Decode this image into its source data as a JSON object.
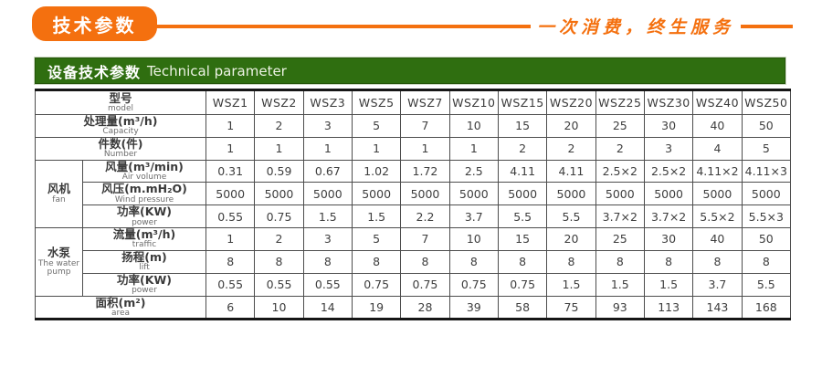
{
  "header": {
    "badge_label": "技术参数",
    "slogan": "一次消费，终生服务"
  },
  "section": {
    "title_zh": "设备技术参数",
    "title_en": "Technical parameter"
  },
  "colors": {
    "accent_orange": "#f4700f",
    "header_green": "#2f6e10",
    "table_border": "#4d4d4d",
    "text": "#3e3e3e"
  },
  "table": {
    "corner": {
      "zh": "型号",
      "en": "model"
    },
    "models": [
      "WSZ1",
      "WSZ2",
      "WSZ3",
      "WSZ5",
      "WSZ7",
      "WSZ10",
      "WSZ15",
      "WSZ20",
      "WSZ25",
      "WSZ30",
      "WSZ40",
      "WSZ50"
    ],
    "rows": [
      {
        "label_zh": "处理量(m³/h)",
        "label_en": "Capacity",
        "span_label": true,
        "values": [
          "1",
          "2",
          "3",
          "5",
          "7",
          "10",
          "15",
          "20",
          "25",
          "30",
          "40",
          "50"
        ]
      },
      {
        "label_zh": "件数(件)",
        "label_en": "Number",
        "span_label": true,
        "values": [
          "1",
          "1",
          "1",
          "1",
          "1",
          "1",
          "2",
          "2",
          "2",
          "3",
          "4",
          "5"
        ]
      },
      {
        "group_zh": "风机",
        "group_en": "fan",
        "group_span": 3,
        "label_zh": "风量(m³/min)",
        "label_en": "Air volume",
        "values": [
          "0.31",
          "0.59",
          "0.67",
          "1.02",
          "1.72",
          "2.5",
          "4.11",
          "4.11",
          "2.5×2",
          "2.5×2",
          "4.11×2",
          "4.11×3"
        ]
      },
      {
        "label_zh": "风压(m.mH₂O)",
        "label_en": "Wind pressure",
        "values": [
          "5000",
          "5000",
          "5000",
          "5000",
          "5000",
          "5000",
          "5000",
          "5000",
          "5000",
          "5000",
          "5000",
          "5000"
        ]
      },
      {
        "label_zh": "功率(KW)",
        "label_en": "power",
        "values": [
          "0.55",
          "0.75",
          "1.5",
          "1.5",
          "2.2",
          "3.7",
          "5.5",
          "5.5",
          "3.7×2",
          "3.7×2",
          "5.5×2",
          "5.5×3"
        ]
      },
      {
        "group_zh": "水泵",
        "group_en": "The water pump",
        "group_span": 3,
        "label_zh": "流量(m³/h)",
        "label_en": "traffic",
        "values": [
          "1",
          "2",
          "3",
          "5",
          "7",
          "10",
          "15",
          "20",
          "25",
          "30",
          "40",
          "50"
        ]
      },
      {
        "label_zh": "扬程(m)",
        "label_en": "lift",
        "values": [
          "8",
          "8",
          "8",
          "8",
          "8",
          "8",
          "8",
          "8",
          "8",
          "8",
          "8",
          "8"
        ]
      },
      {
        "label_zh": "功率(KW)",
        "label_en": "power",
        "values": [
          "0.55",
          "0.55",
          "0.55",
          "0.75",
          "0.75",
          "0.75",
          "0.75",
          "1.5",
          "1.5",
          "1.5",
          "3.7",
          "5.5"
        ]
      },
      {
        "label_zh": "面积(m²)",
        "label_en": "area",
        "span_label": true,
        "align": "left",
        "values": [
          "6",
          "10",
          "14",
          "19",
          "28",
          "39",
          "58",
          "75",
          "93",
          "113",
          "143",
          "168"
        ]
      }
    ]
  }
}
